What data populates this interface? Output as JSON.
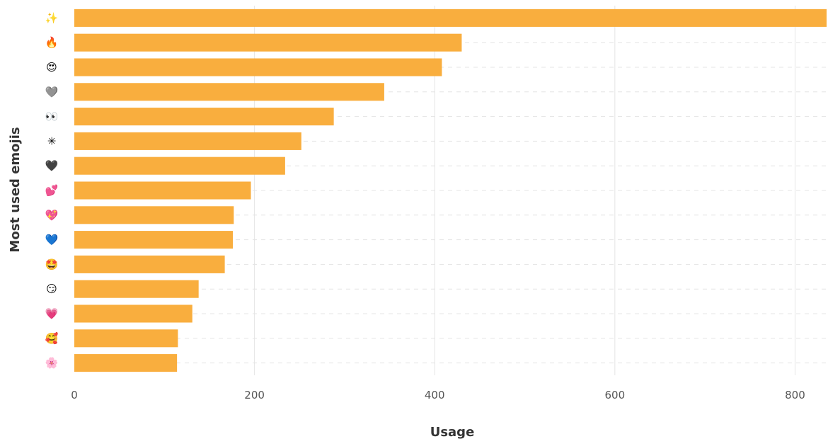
{
  "chart_data": {
    "type": "bar",
    "orientation": "horizontal",
    "title": "",
    "xlabel": "Usage",
    "ylabel": "Most used emojis",
    "categories": [
      "✨",
      "🔥",
      "😍",
      "🩶",
      "👀",
      "✳",
      "🖤",
      "💕",
      "💖",
      "💙",
      "🤩",
      "😏",
      "💗",
      "🥰",
      "🌸"
    ],
    "values": [
      835,
      430,
      408,
      344,
      288,
      252,
      234,
      196,
      177,
      176,
      167,
      138,
      131,
      115,
      114
    ],
    "xlim": [
      0,
      835
    ],
    "xticks": [
      0,
      200,
      400,
      600,
      800
    ],
    "grid": true,
    "bar_color": "#F9AE3E",
    "grid_color": "#E4E4E4",
    "legend": "none"
  }
}
